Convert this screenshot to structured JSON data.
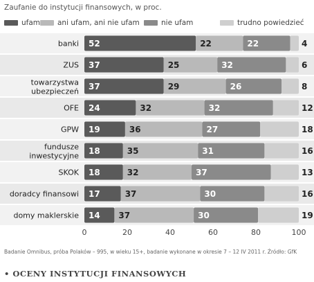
{
  "chart_data": {
    "type": "bar",
    "orientation": "horizontal",
    "stacked": true,
    "title": "Zaufanie do instytucji finansowych, w proc.",
    "categories": [
      "banki",
      "ZUS",
      "towarzystwa\nubezpieczeń",
      "OFE",
      "GPW",
      "fundusze\ninwestycyjne",
      "SKOK",
      "doradcy finansowi",
      "domy maklerskie"
    ],
    "series": [
      {
        "name": "ufam",
        "values": [
          52,
          37,
          37,
          24,
          19,
          18,
          18,
          17,
          14
        ],
        "color": "#5a5a5a"
      },
      {
        "name": "ani ufam, ani nie ufam",
        "values": [
          22,
          25,
          29,
          32,
          36,
          35,
          32,
          37,
          37
        ],
        "color": "#b9b9b9"
      },
      {
        "name": "nie ufam",
        "values": [
          22,
          32,
          26,
          32,
          27,
          31,
          37,
          30,
          30
        ],
        "color": "#8a8a8a"
      },
      {
        "name": "trudno powiedzieć",
        "values": [
          4,
          6,
          8,
          12,
          18,
          16,
          13,
          16,
          19
        ],
        "color": "#cfcfcf"
      }
    ],
    "x_ticks": [
      0,
      20,
      40,
      60,
      80,
      100
    ],
    "xlim": [
      0,
      100
    ],
    "legend_position": "top"
  },
  "source_note": "Badanie Omnibus, próba Polaków – 995, w wieku 15+, badanie wykonane w okresie 7 – 12 IV 2011 r. Źródło: GfK",
  "footer_title": "• OCENY INSTYTUCJI FINANSOWYCH"
}
